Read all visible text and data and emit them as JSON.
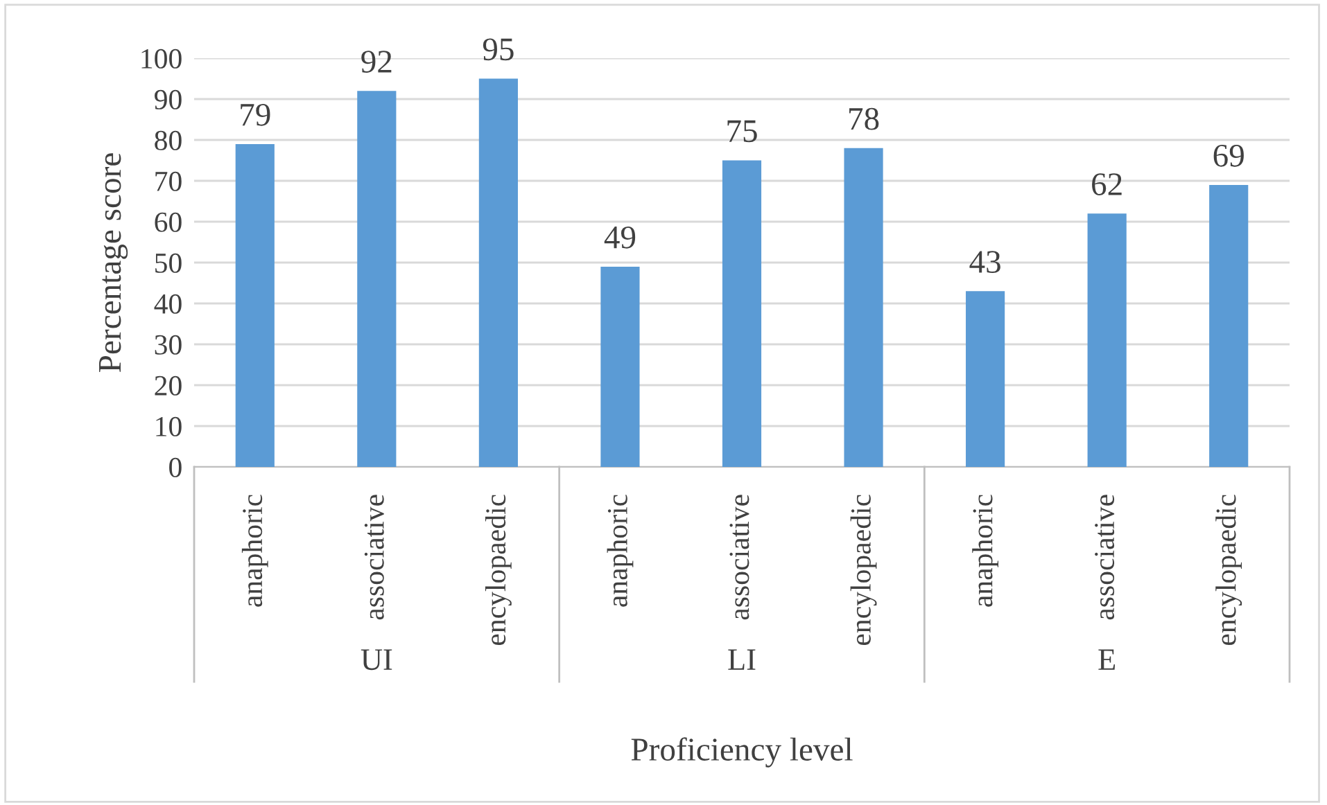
{
  "chart_data": {
    "type": "bar",
    "ylabel": "Percentage score",
    "xlabel": "Proficiency level",
    "categories": [
      "anaphoric",
      "associative",
      "encylopaedic",
      "anaphoric",
      "associative",
      "encylopaedic",
      "anaphoric",
      "associative",
      "encylopaedic"
    ],
    "values": [
      79,
      92,
      95,
      49,
      75,
      78,
      43,
      62,
      69
    ],
    "color": "#5b9bd5",
    "annotations": [
      "UI",
      "LI",
      "E"
    ],
    "ylim": [
      0,
      100
    ],
    "yticks": [
      0,
      10,
      20,
      30,
      40,
      50,
      60,
      70,
      80,
      90,
      100
    ],
    "grid": "y",
    "data_labels": true
  }
}
